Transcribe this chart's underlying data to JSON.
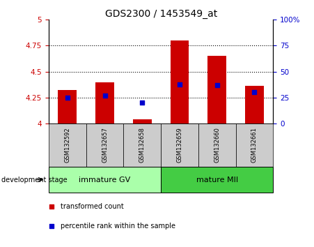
{
  "title": "GDS2300 / 1453549_at",
  "samples": [
    "GSM132592",
    "GSM132657",
    "GSM132658",
    "GSM132659",
    "GSM132660",
    "GSM132661"
  ],
  "transformed_counts": [
    4.32,
    4.4,
    4.04,
    4.8,
    4.65,
    4.36
  ],
  "percentile_ranks": [
    25,
    27,
    20,
    38,
    37,
    30
  ],
  "ylim_left": [
    4.0,
    5.0
  ],
  "ylim_right": [
    0,
    100
  ],
  "yticks_left": [
    4.0,
    4.25,
    4.5,
    4.75,
    5.0
  ],
  "yticks_right": [
    0,
    25,
    50,
    75,
    100
  ],
  "ytick_labels_left": [
    "4",
    "4.25",
    "4.5",
    "4.75",
    "5"
  ],
  "ytick_labels_right": [
    "0",
    "25",
    "50",
    "75",
    "100%"
  ],
  "groups": [
    {
      "label": "immature GV",
      "start": 0,
      "end": 3,
      "color": "#aaffaa"
    },
    {
      "label": "mature MII",
      "start": 3,
      "end": 6,
      "color": "#44cc44"
    }
  ],
  "group_label": "development stage",
  "bar_color": "#cc0000",
  "dot_color": "#0000cc",
  "bar_bottom": 4.0,
  "bar_width": 0.5,
  "dot_size": 25,
  "grid_color": "black",
  "grid_linestyle": "dotted",
  "grid_linewidth": 0.8,
  "legend_items": [
    {
      "label": "transformed count",
      "color": "#cc0000"
    },
    {
      "label": "percentile rank within the sample",
      "color": "#0000cc"
    }
  ],
  "title_fontsize": 10,
  "tick_fontsize": 7.5,
  "sample_fontsize": 6,
  "group_fontsize": 8
}
